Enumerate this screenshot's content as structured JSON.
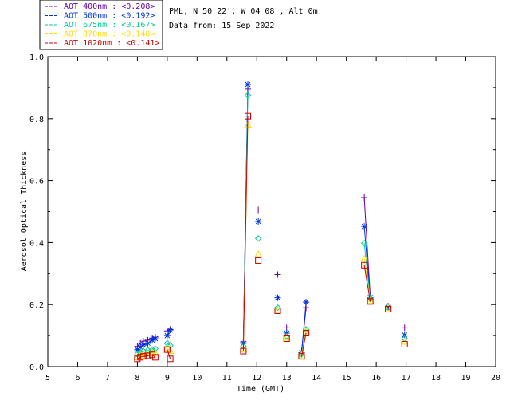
{
  "header": {
    "station": "PML, N 50 22', W 04 08', Alt 0m",
    "date": "Data from: 15 Sep 2022"
  },
  "legend": [
    {
      "label": "AOT  400nm : <0.208>",
      "color": "#6600aa"
    },
    {
      "label": "AOT  500nm : <0.192>",
      "color": "#0033dd"
    },
    {
      "label": "AOT  675nm : <0.167>",
      "color": "#00cc99"
    },
    {
      "label": "AOT  870nm : <0.148>",
      "color": "#ffdd00"
    },
    {
      "label": "AOT 1020nm : <0.141>",
      "color": "#cc0000"
    }
  ],
  "chart_data": {
    "type": "line",
    "title": "",
    "xlabel": "Time (GMT)",
    "ylabel": "Aerosol Optical Thickness",
    "xlim": [
      5,
      20
    ],
    "ylim": [
      0.0,
      1.0
    ],
    "xticks": [
      "5",
      "6",
      "7",
      "8",
      "9",
      "10",
      "11",
      "12",
      "13",
      "14",
      "15",
      "16",
      "17",
      "18",
      "19",
      "20"
    ],
    "yticks": [
      "0.0",
      "0.2",
      "0.4",
      "0.6",
      "0.8",
      "1.0"
    ],
    "grid": false,
    "legend_position": "top-left, outside plot",
    "series": [
      {
        "name": "AOT  400nm : <0.208>",
        "color": "#6600aa",
        "marker": "plus",
        "x": [
          8.0,
          8.1,
          8.2,
          8.35,
          8.5,
          8.6,
          9.0,
          9.1,
          11.55,
          11.7,
          12.05,
          12.7,
          13.0,
          13.5,
          13.65,
          15.6,
          15.8,
          16.4,
          16.95
        ],
        "y": [
          0.065,
          0.075,
          0.082,
          0.085,
          0.092,
          0.095,
          0.115,
          0.12,
          0.08,
          0.895,
          0.505,
          0.297,
          0.125,
          0.05,
          0.19,
          0.545,
          0.228,
          0.195,
          0.125
        ]
      },
      {
        "name": "AOT  500nm : <0.192>",
        "color": "#0033dd",
        "marker": "asterisk",
        "x": [
          8.0,
          8.1,
          8.2,
          8.35,
          8.5,
          8.6,
          9.0,
          9.1,
          11.55,
          11.7,
          12.05,
          12.7,
          13.0,
          13.5,
          13.65,
          15.6,
          15.8,
          16.4,
          16.95
        ],
        "y": [
          0.055,
          0.063,
          0.07,
          0.075,
          0.085,
          0.09,
          0.1,
          0.118,
          0.075,
          0.91,
          0.468,
          0.222,
          0.108,
          0.045,
          0.208,
          0.452,
          0.222,
          0.193,
          0.102
        ]
      },
      {
        "name": "AOT  675nm : <0.167>",
        "color": "#00cc99",
        "marker": "diamond",
        "x": [
          8.0,
          8.1,
          8.2,
          8.35,
          8.5,
          8.6,
          9.0,
          9.1,
          11.55,
          11.7,
          12.05,
          12.7,
          13.0,
          13.5,
          13.65,
          15.6,
          15.8,
          16.4,
          16.95
        ],
        "y": [
          0.04,
          0.045,
          0.05,
          0.053,
          0.055,
          0.058,
          0.075,
          0.068,
          0.065,
          0.875,
          0.413,
          0.19,
          0.098,
          0.04,
          0.12,
          0.398,
          0.218,
          0.19,
          0.09
        ]
      },
      {
        "name": "AOT  870nm : <0.148>",
        "color": "#ffdd00",
        "marker": "triangle",
        "x": [
          8.0,
          8.1,
          8.2,
          8.35,
          8.5,
          8.6,
          9.0,
          9.1,
          11.55,
          11.7,
          12.05,
          12.7,
          13.0,
          13.5,
          13.65,
          15.6,
          15.8,
          16.4,
          16.95
        ],
        "y": [
          0.03,
          0.035,
          0.04,
          0.042,
          0.045,
          0.043,
          0.06,
          0.05,
          0.055,
          0.78,
          0.362,
          0.183,
          0.093,
          0.036,
          0.115,
          0.348,
          0.212,
          0.188,
          0.08
        ]
      },
      {
        "name": "AOT 1020nm : <0.141>",
        "color": "#cc0000",
        "marker": "square",
        "x": [
          8.0,
          8.1,
          8.2,
          8.35,
          8.5,
          8.6,
          9.0,
          9.1,
          11.55,
          11.7,
          12.05,
          12.7,
          13.0,
          13.5,
          13.65,
          15.6,
          15.8,
          16.4,
          16.95
        ],
        "y": [
          0.025,
          0.03,
          0.033,
          0.035,
          0.038,
          0.03,
          0.055,
          0.025,
          0.05,
          0.808,
          0.342,
          0.18,
          0.09,
          0.033,
          0.108,
          0.327,
          0.21,
          0.185,
          0.072
        ]
      }
    ],
    "segments": [
      [
        0,
        5
      ],
      [
        6,
        7
      ],
      [
        8,
        9
      ],
      [
        13,
        14
      ],
      [
        15,
        16
      ]
    ]
  }
}
